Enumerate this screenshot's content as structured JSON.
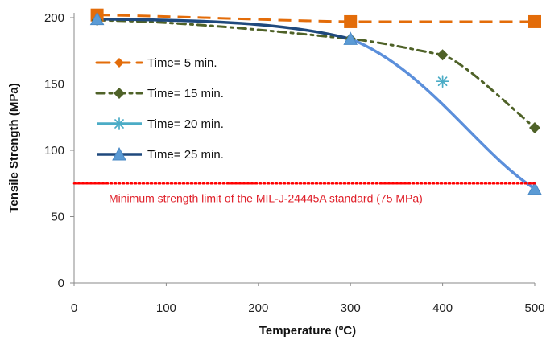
{
  "chart_data": {
    "type": "line",
    "xlabel": "Temperature (ºC)",
    "ylabel": "Tensile Strength (MPa)",
    "xlim": [
      0,
      500
    ],
    "ylim": [
      0,
      200
    ],
    "x_ticks": [
      0,
      100,
      200,
      300,
      400,
      500
    ],
    "y_ticks": [
      0,
      50,
      100,
      150,
      200
    ],
    "x_tick_labels": [
      "0",
      "100",
      "200",
      "300",
      "400",
      "500"
    ],
    "y_tick_labels": [
      "0",
      "50",
      "100",
      "150",
      "200"
    ],
    "grid": false,
    "legend_placement": "center-left",
    "series": [
      {
        "name": "Time=  5 min.",
        "color": "#e36c09",
        "marker": "square",
        "line_style": "long-dash",
        "x": [
          25,
          300,
          500
        ],
        "y": [
          202,
          197,
          197
        ]
      },
      {
        "name": "Time= 15 min.",
        "color": "#4f6228",
        "marker": "diamond",
        "line_style": "dash-dot",
        "x": [
          25,
          300,
          400,
          500
        ],
        "y": [
          198,
          184,
          172,
          117
        ]
      },
      {
        "name": "Time= 20 min.",
        "color": "#4bacc6",
        "marker": "asterisk",
        "line_style": "solid",
        "x": [
          400
        ],
        "y": [
          152
        ]
      },
      {
        "name": "Time= 25 min.",
        "color": "#1f497d",
        "color_segment_2": "#5b8fdb",
        "marker": "triangle",
        "line_style": "solid",
        "x": [
          25,
          300,
          500
        ],
        "y": [
          199,
          184,
          71
        ]
      }
    ],
    "annotations": [
      {
        "text": "Minimum strength  limit of the MIL-J-24445A standard (75 MPa)",
        "y": 75,
        "color": "#ff0000",
        "line_style": "dotted"
      }
    ]
  }
}
